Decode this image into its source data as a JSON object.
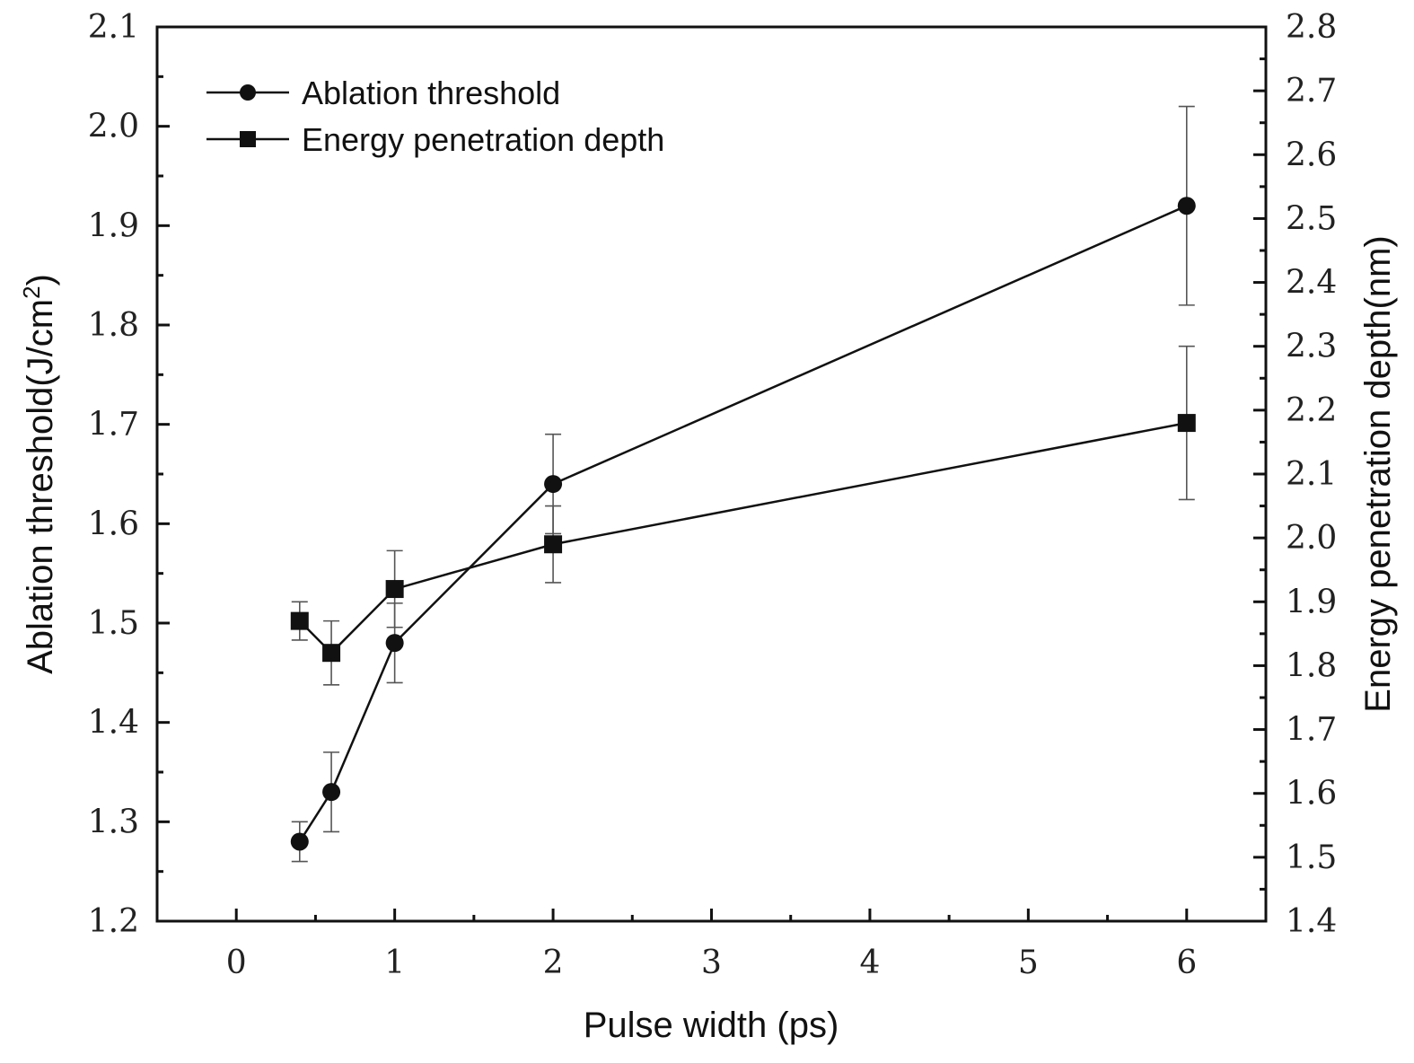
{
  "chart_data": {
    "type": "line",
    "xlabel": "Pulse width (ps)",
    "ylabel_left_main": "Ablation threshold(J/cm",
    "ylabel_left_sup": "2",
    "ylabel_left_end": ")",
    "ylabel_right": "Energy penetration depth(nm)",
    "xlim": [
      -0.5,
      6.5
    ],
    "ylim_left": [
      1.2,
      2.1
    ],
    "ylim_right": [
      1.4,
      2.8
    ],
    "x_ticks": [
      "0",
      "1",
      "2",
      "3",
      "4",
      "5",
      "6"
    ],
    "y_left_ticks": [
      "1.2",
      "1.3",
      "1.4",
      "1.5",
      "1.6",
      "1.7",
      "1.8",
      "1.9",
      "2.0",
      "2.1"
    ],
    "y_right_ticks": [
      "1.4",
      "1.5",
      "1.6",
      "1.7",
      "1.8",
      "1.9",
      "2.0",
      "2.1",
      "2.2",
      "2.3",
      "2.4",
      "2.5",
      "2.6",
      "2.7",
      "2.8"
    ],
    "grid": false,
    "legend_position": "top-left",
    "series": [
      {
        "name": "Ablation threshold",
        "axis": "left",
        "marker": "circle",
        "x": [
          0.4,
          0.6,
          1,
          2,
          6
        ],
        "y": [
          1.28,
          1.33,
          1.48,
          1.64,
          1.92
        ],
        "err": [
          0.02,
          0.04,
          0.04,
          0.05,
          0.1
        ]
      },
      {
        "name": "Energy penetration depth",
        "axis": "right",
        "marker": "square",
        "x": [
          0.4,
          0.6,
          1,
          2,
          6
        ],
        "y": [
          1.87,
          1.82,
          1.92,
          1.99,
          2.18
        ],
        "err": [
          0.03,
          0.05,
          0.06,
          0.06,
          0.12
        ]
      }
    ]
  }
}
